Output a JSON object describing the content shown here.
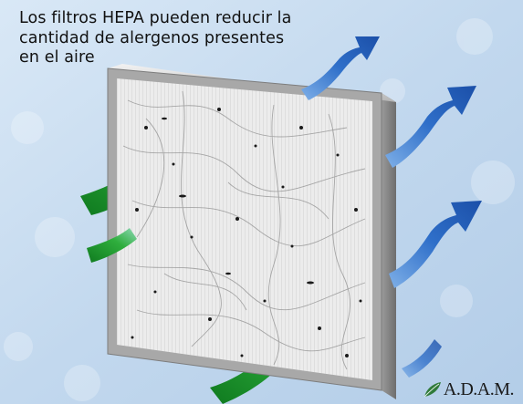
{
  "caption": {
    "line1": "Los filtros HEPA pueden reducir la",
    "line2": "cantidad de alergenos presentes",
    "line3": "en el aire"
  },
  "logo": {
    "text": "A.D.A.M.",
    "icon": "adam-leaf-icon"
  },
  "colors": {
    "background": "#c5daf0",
    "frame": "#9a9a9a",
    "filter_mesh": "#e8e8e8",
    "incoming_air": "#1f8f2e",
    "outgoing_air": "#2f6fc9"
  },
  "illustration": {
    "incoming_arrows": 4,
    "outgoing_arrows": 4
  }
}
